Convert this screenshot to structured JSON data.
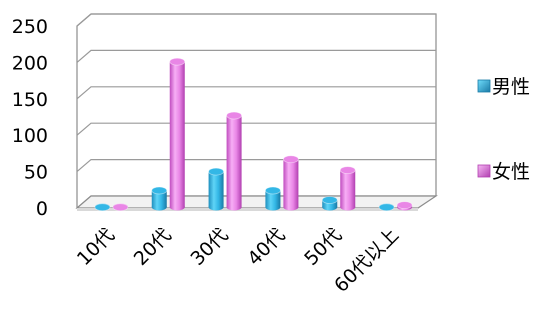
{
  "chart_data": {
    "type": "bar",
    "style": "3d-cylinder",
    "categories": [
      "10代",
      "20代",
      "30代",
      "40代",
      "50代",
      "60代以上"
    ],
    "series": [
      {
        "name": "男性",
        "values": [
          1,
          24,
          50,
          24,
          11,
          1
        ],
        "color": "#33b7e6"
      },
      {
        "name": "女性",
        "values": [
          1,
          201,
          127,
          67,
          52,
          4
        ],
        "color": "#e986e6"
      }
    ],
    "y_ticks": [
      "0",
      "50",
      "100",
      "150",
      "200",
      "250"
    ],
    "ylim": [
      0,
      250
    ],
    "grid": true,
    "legend_position": "right",
    "title": "",
    "xlabel": "",
    "ylabel": ""
  }
}
